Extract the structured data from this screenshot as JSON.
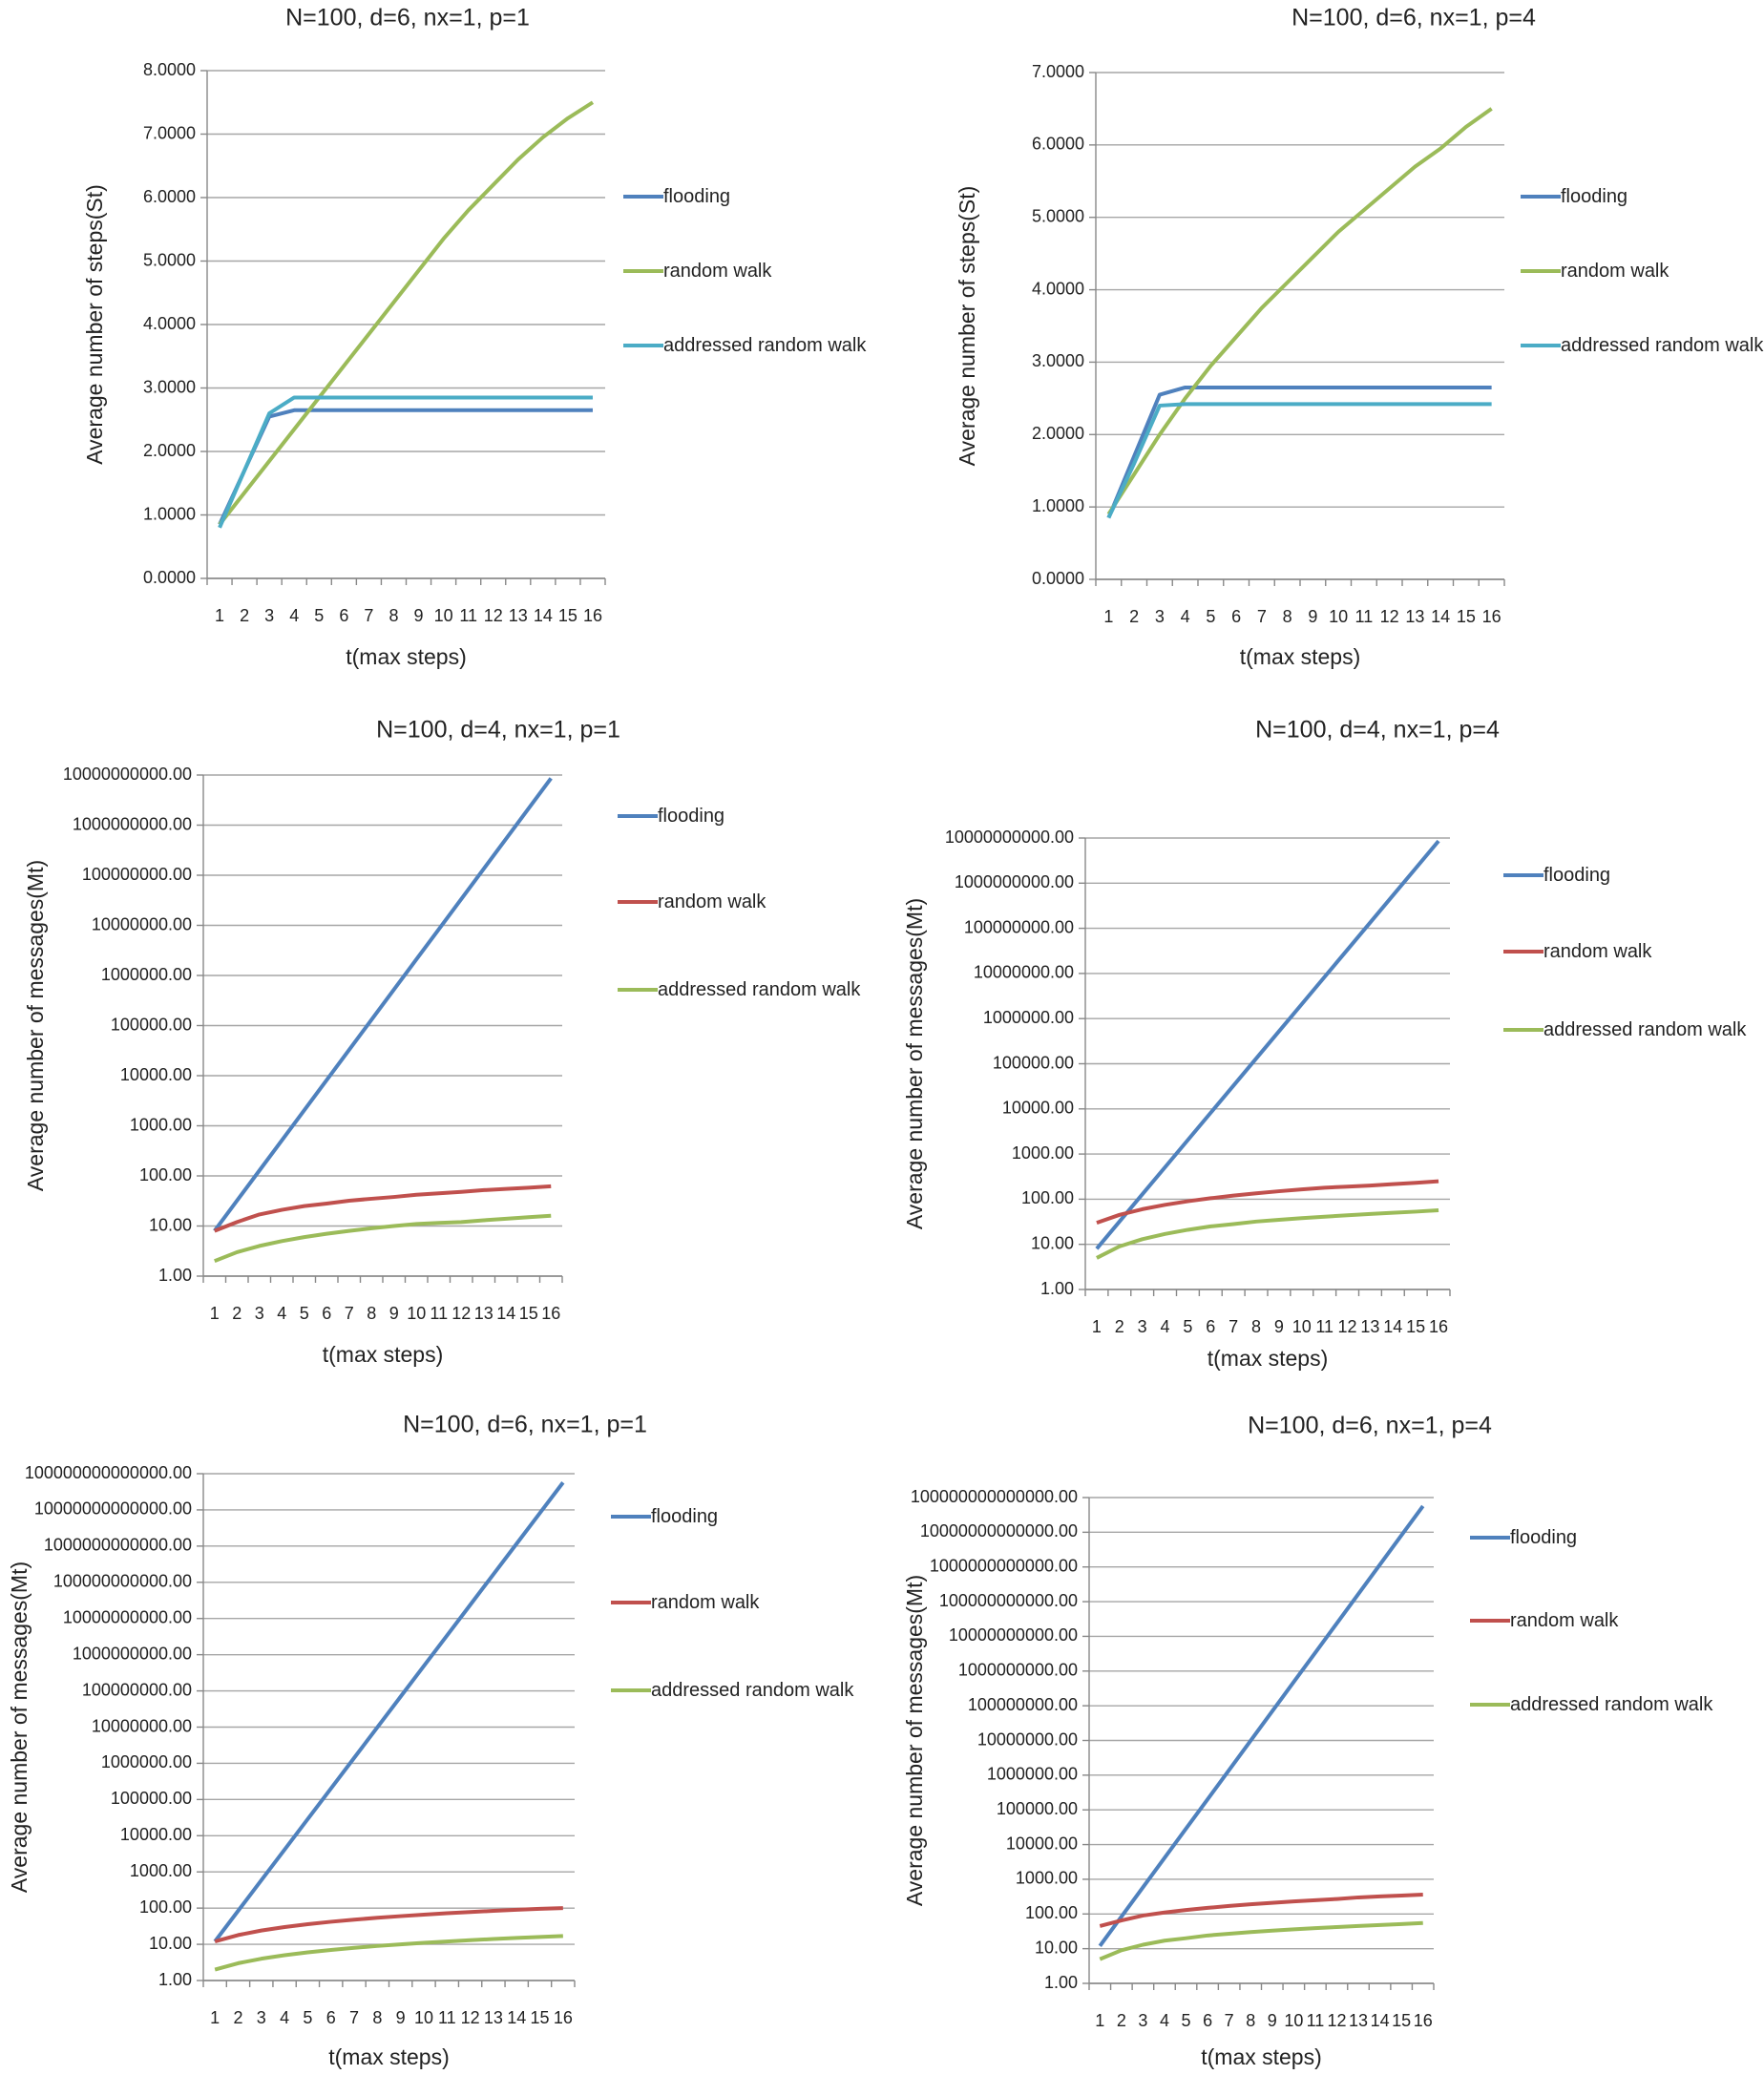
{
  "chart_data": [
    {
      "type": "line",
      "title": "N=100, d=6, nx=1, p=1",
      "x_label": "t(max steps)",
      "y_label": "Average number of steps(St)",
      "categories": [
        1,
        2,
        3,
        4,
        5,
        6,
        7,
        8,
        9,
        10,
        11,
        12,
        13,
        14,
        15,
        16
      ],
      "series": [
        {
          "name": "flooding",
          "color": "#4f81bd",
          "values": [
            0.85,
            1.7,
            2.55,
            2.65,
            2.65,
            2.65,
            2.65,
            2.65,
            2.65,
            2.65,
            2.65,
            2.65,
            2.65,
            2.65,
            2.65,
            2.65
          ]
        },
        {
          "name": "random walk",
          "color": "#9bbb59",
          "values": [
            0.85,
            1.35,
            1.85,
            2.35,
            2.85,
            3.35,
            3.85,
            4.35,
            4.85,
            5.35,
            5.8,
            6.2,
            6.6,
            6.95,
            7.25,
            7.5
          ]
        },
        {
          "name": "addressed random walk",
          "color": "#4bacc6",
          "values": [
            0.8,
            1.7,
            2.6,
            2.85,
            2.85,
            2.85,
            2.85,
            2.85,
            2.85,
            2.85,
            2.85,
            2.85,
            2.85,
            2.85,
            2.85,
            2.85
          ]
        }
      ],
      "ylim": [
        0,
        8
      ],
      "yscale": "linear",
      "grid": true,
      "yticks": [
        {
          "value": 0,
          "label": "0.0000"
        },
        {
          "value": 1,
          "label": "1.0000"
        },
        {
          "value": 2,
          "label": "2.0000"
        },
        {
          "value": 3,
          "label": "3.0000"
        },
        {
          "value": 4,
          "label": "4.0000"
        },
        {
          "value": 5,
          "label": "5.0000"
        },
        {
          "value": 6,
          "label": "6.0000"
        },
        {
          "value": 7,
          "label": "7.0000"
        },
        {
          "value": 8,
          "label": "8.0000"
        }
      ]
    },
    {
      "type": "line",
      "title": "N=100, d=6, nx=1, p=4",
      "x_label": "t(max steps)",
      "y_label": "Average number of steps(St)",
      "categories": [
        1,
        2,
        3,
        4,
        5,
        6,
        7,
        8,
        9,
        10,
        11,
        12,
        13,
        14,
        15,
        16
      ],
      "series": [
        {
          "name": "flooding",
          "color": "#4f81bd",
          "values": [
            0.85,
            1.7,
            2.55,
            2.65,
            2.65,
            2.65,
            2.65,
            2.65,
            2.65,
            2.65,
            2.65,
            2.65,
            2.65,
            2.65,
            2.65,
            2.65
          ]
        },
        {
          "name": "random walk",
          "color": "#9bbb59",
          "values": [
            0.9,
            1.45,
            2.0,
            2.5,
            2.95,
            3.35,
            3.75,
            4.1,
            4.45,
            4.8,
            5.1,
            5.4,
            5.7,
            5.95,
            6.25,
            6.5
          ]
        },
        {
          "name": "addressed random walk",
          "color": "#4bacc6",
          "values": [
            0.85,
            1.6,
            2.4,
            2.42,
            2.42,
            2.42,
            2.42,
            2.42,
            2.42,
            2.42,
            2.42,
            2.42,
            2.42,
            2.42,
            2.42,
            2.42
          ]
        }
      ],
      "ylim": [
        0,
        7
      ],
      "yscale": "linear",
      "grid": true,
      "yticks": [
        {
          "value": 0,
          "label": "0.0000"
        },
        {
          "value": 1,
          "label": "1.0000"
        },
        {
          "value": 2,
          "label": "2.0000"
        },
        {
          "value": 3,
          "label": "3.0000"
        },
        {
          "value": 4,
          "label": "4.0000"
        },
        {
          "value": 5,
          "label": "5.0000"
        },
        {
          "value": 6,
          "label": "6.0000"
        },
        {
          "value": 7,
          "label": "7.0000"
        }
      ]
    },
    {
      "type": "line",
      "title": "N=100, d=4, nx=1, p=1",
      "x_label": "t(max steps)",
      "y_label": "Average number of messages(Mt)",
      "categories": [
        1,
        2,
        3,
        4,
        5,
        6,
        7,
        8,
        9,
        10,
        11,
        12,
        13,
        14,
        15,
        16
      ],
      "series": [
        {
          "name": "flooding",
          "color": "#4f81bd",
          "values": [
            8,
            32,
            128,
            512,
            2048,
            8192,
            32768,
            131072,
            524288,
            2097152,
            8388608,
            33554432,
            134217728,
            536870912,
            2147483648,
            8589934592
          ]
        },
        {
          "name": "random walk",
          "color": "#c0504d",
          "values": [
            8,
            12,
            17,
            21,
            25,
            28,
            32,
            35,
            38,
            42,
            45,
            48,
            52,
            55,
            58,
            62
          ]
        },
        {
          "name": "addressed random walk",
          "color": "#9bbb59",
          "values": [
            2,
            3,
            4,
            5,
            6,
            7,
            8,
            9,
            10,
            11,
            11.5,
            12,
            13,
            14,
            15,
            16
          ]
        }
      ],
      "ylim": [
        1,
        10000000000
      ],
      "yscale": "log",
      "grid": true,
      "yticks": [
        {
          "value": 1,
          "label": "1.00"
        },
        {
          "value": 10,
          "label": "10.00"
        },
        {
          "value": 100,
          "label": "100.00"
        },
        {
          "value": 1000,
          "label": "1000.00"
        },
        {
          "value": 10000,
          "label": "10000.00"
        },
        {
          "value": 100000,
          "label": "100000.00"
        },
        {
          "value": 1000000,
          "label": "1000000.00"
        },
        {
          "value": 10000000,
          "label": "10000000.00"
        },
        {
          "value": 100000000,
          "label": "100000000.00"
        },
        {
          "value": 1000000000,
          "label": "1000000000.00"
        },
        {
          "value": 10000000000,
          "label": "10000000000.00"
        }
      ]
    },
    {
      "type": "line",
      "title": "N=100, d=4, nx=1, p=4",
      "x_label": "t(max steps)",
      "y_label": "Average number of messages(Mt)",
      "categories": [
        1,
        2,
        3,
        4,
        5,
        6,
        7,
        8,
        9,
        10,
        11,
        12,
        13,
        14,
        15,
        16
      ],
      "series": [
        {
          "name": "flooding",
          "color": "#4f81bd",
          "values": [
            8,
            32,
            128,
            512,
            2048,
            8192,
            32768,
            131072,
            524288,
            2097152,
            8388608,
            33554432,
            134217728,
            536870912,
            2147483648,
            8589934592
          ]
        },
        {
          "name": "random walk",
          "color": "#c0504d",
          "values": [
            30,
            45,
            60,
            75,
            90,
            105,
            120,
            135,
            150,
            165,
            180,
            190,
            200,
            215,
            230,
            250
          ]
        },
        {
          "name": "addressed random walk",
          "color": "#9bbb59",
          "values": [
            5,
            9,
            13,
            17,
            21,
            25,
            28,
            32,
            35,
            38,
            41,
            44,
            47,
            50,
            53,
            57
          ]
        }
      ],
      "ylim": [
        1,
        10000000000
      ],
      "yscale": "log",
      "grid": true,
      "yticks": [
        {
          "value": 1,
          "label": "1.00"
        },
        {
          "value": 10,
          "label": "10.00"
        },
        {
          "value": 100,
          "label": "100.00"
        },
        {
          "value": 1000,
          "label": "1000.00"
        },
        {
          "value": 10000,
          "label": "10000.00"
        },
        {
          "value": 100000,
          "label": "100000.00"
        },
        {
          "value": 1000000,
          "label": "1000000.00"
        },
        {
          "value": 10000000,
          "label": "10000000.00"
        },
        {
          "value": 100000000,
          "label": "100000000.00"
        },
        {
          "value": 1000000000,
          "label": "1000000000.00"
        },
        {
          "value": 10000000000,
          "label": "10000000000.00"
        }
      ]
    },
    {
      "type": "line",
      "title": "N=100, d=6, nx=1, p=1",
      "x_label": "t(max steps)",
      "y_label": "Average number of messages(Mt)",
      "categories": [
        1,
        2,
        3,
        4,
        5,
        6,
        7,
        8,
        9,
        10,
        11,
        12,
        13,
        14,
        15,
        16
      ],
      "series": [
        {
          "name": "flooding",
          "color": "#4f81bd",
          "values": [
            12,
            84,
            588,
            4116,
            28812,
            201684,
            1411788,
            9882516,
            69177612,
            484243284,
            3389702988,
            23727920916,
            166095446412,
            1162668124884,
            8138676874188,
            56970738119316
          ]
        },
        {
          "name": "random walk",
          "color": "#c0504d",
          "values": [
            12,
            18,
            24,
            30,
            36,
            42,
            48,
            54,
            60,
            66,
            72,
            78,
            84,
            90,
            96,
            100
          ]
        },
        {
          "name": "addressed random walk",
          "color": "#9bbb59",
          "values": [
            2,
            3,
            4,
            5,
            6,
            7,
            8,
            9,
            10,
            11,
            12,
            13,
            14,
            15,
            16,
            17
          ]
        }
      ],
      "ylim": [
        1,
        100000000000000
      ],
      "yscale": "log",
      "grid": true,
      "yticks": [
        {
          "value": 1,
          "label": "1.00"
        },
        {
          "value": 10,
          "label": "10.00"
        },
        {
          "value": 100,
          "label": "100.00"
        },
        {
          "value": 1000,
          "label": "1000.00"
        },
        {
          "value": 10000,
          "label": "10000.00"
        },
        {
          "value": 100000,
          "label": "100000.00"
        },
        {
          "value": 1000000,
          "label": "1000000.00"
        },
        {
          "value": 10000000,
          "label": "10000000.00"
        },
        {
          "value": 100000000,
          "label": "100000000.00"
        },
        {
          "value": 1000000000,
          "label": "1000000000.00"
        },
        {
          "value": 10000000000,
          "label": "10000000000.00"
        },
        {
          "value": 100000000000,
          "label": "100000000000.00"
        },
        {
          "value": 1000000000000,
          "label": "1000000000000.00"
        },
        {
          "value": 10000000000000,
          "label": "10000000000000.00"
        },
        {
          "value": 100000000000000,
          "label": "100000000000000.00"
        }
      ]
    },
    {
      "type": "line",
      "title": "N=100, d=6, nx=1, p=4",
      "x_label": "t(max steps)",
      "y_label": "Average number of messages(Mt)",
      "categories": [
        1,
        2,
        3,
        4,
        5,
        6,
        7,
        8,
        9,
        10,
        11,
        12,
        13,
        14,
        15,
        16
      ],
      "series": [
        {
          "name": "flooding",
          "color": "#4f81bd",
          "values": [
            12,
            84,
            588,
            4116,
            28812,
            201684,
            1411788,
            9882516,
            69177612,
            484243284,
            3389702988,
            23727920916,
            166095446412,
            1162668124884,
            8138676874188,
            56970738119316
          ]
        },
        {
          "name": "random walk",
          "color": "#c0504d",
          "values": [
            45,
            65,
            90,
            110,
            130,
            150,
            170,
            190,
            210,
            230,
            250,
            270,
            300,
            320,
            340,
            360
          ]
        },
        {
          "name": "addressed random walk",
          "color": "#9bbb59",
          "values": [
            5,
            9,
            13,
            17,
            20,
            24,
            27,
            30,
            33,
            36,
            39,
            42,
            45,
            48,
            51,
            55
          ]
        }
      ],
      "ylim": [
        1,
        100000000000000
      ],
      "yscale": "log",
      "grid": true,
      "yticks": [
        {
          "value": 1,
          "label": "1.00"
        },
        {
          "value": 10,
          "label": "10.00"
        },
        {
          "value": 100,
          "label": "100.00"
        },
        {
          "value": 1000,
          "label": "1000.00"
        },
        {
          "value": 10000,
          "label": "10000.00"
        },
        {
          "value": 100000,
          "label": "100000.00"
        },
        {
          "value": 1000000,
          "label": "1000000.00"
        },
        {
          "value": 10000000,
          "label": "10000000.00"
        },
        {
          "value": 100000000,
          "label": "100000000.00"
        },
        {
          "value": 1000000000,
          "label": "1000000000.00"
        },
        {
          "value": 10000000000,
          "label": "10000000000.00"
        },
        {
          "value": 100000000000,
          "label": "100000000000.00"
        },
        {
          "value": 1000000000000,
          "label": "1000000000000.00"
        },
        {
          "value": 10000000000000,
          "label": "10000000000000.00"
        },
        {
          "value": 100000000000000,
          "label": "100000000000000.00"
        }
      ]
    }
  ]
}
